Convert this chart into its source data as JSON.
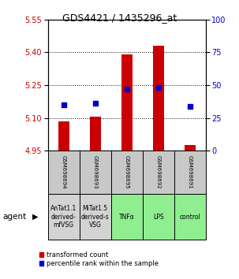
{
  "title": "GDS4421 / 1435296_at",
  "samples": [
    "GSM698694",
    "GSM698693",
    "GSM698695",
    "GSM698692",
    "GSM698691"
  ],
  "agents": [
    "AnTat1.1\nderived-\nmfVSG",
    "MiTat1.5\nderived-s\nVSG",
    "TNFα",
    "LPS",
    "control"
  ],
  "agent_colors": [
    "#d3d3d3",
    "#d3d3d3",
    "#90ee90",
    "#90ee90",
    "#90ee90"
  ],
  "red_values": [
    5.085,
    5.105,
    5.39,
    5.43,
    4.975
  ],
  "blue_percentiles": [
    35,
    36,
    47,
    48,
    34
  ],
  "ylim_left": [
    4.95,
    5.55
  ],
  "ylim_right": [
    0,
    100
  ],
  "yticks_left": [
    4.95,
    5.1,
    5.25,
    5.4,
    5.55
  ],
  "yticks_right": [
    0,
    25,
    50,
    75,
    100
  ],
  "bar_bottom": 4.95,
  "bar_width": 0.35,
  "red_color": "#cc0000",
  "blue_color": "#0000cc",
  "legend_red": "transformed count",
  "legend_blue": "percentile rank within the sample",
  "left_tick_color": "#cc0000",
  "right_tick_color": "#0000cc"
}
